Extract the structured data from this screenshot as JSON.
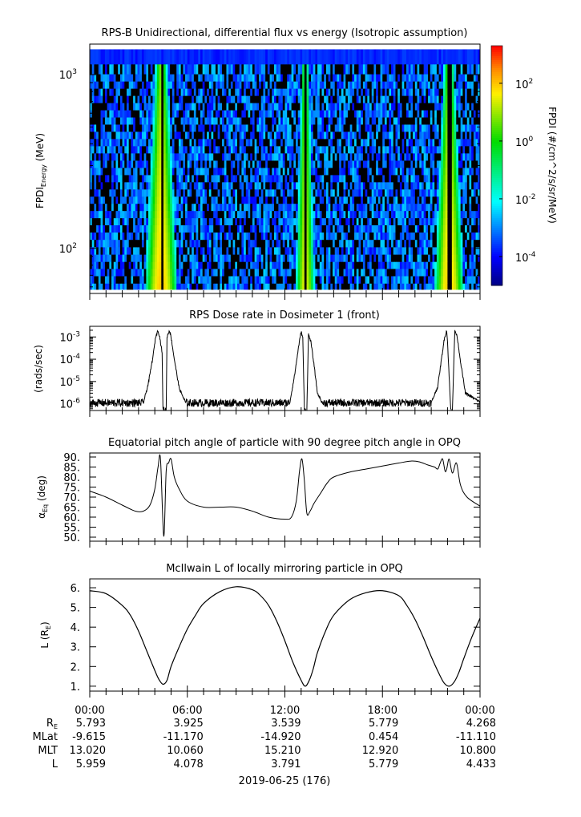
{
  "time_axis": {
    "start": "00:00",
    "end": "24:00",
    "tick_labels": [
      "00:00",
      "06:00",
      "12:00",
      "18:00",
      "00:00"
    ],
    "date_label": "2019-06-25 (176)"
  },
  "ephemeris": {
    "rows": [
      {
        "label": "R",
        "label_sub": "E",
        "values": [
          "5.793",
          "3.925",
          "3.539",
          "5.779",
          "4.268"
        ]
      },
      {
        "label": "MLat",
        "label_sub": "",
        "values": [
          "-9.615",
          "-11.170",
          "-14.920",
          "0.454",
          "-11.110"
        ]
      },
      {
        "label": "MLT",
        "label_sub": "",
        "values": [
          "13.020",
          "10.060",
          "15.210",
          "12.920",
          "10.800"
        ]
      },
      {
        "label": "L",
        "label_sub": "",
        "values": [
          "5.959",
          "4.078",
          "3.791",
          "5.779",
          "4.433"
        ]
      }
    ]
  },
  "chart_data": [
    {
      "type": "heatmap",
      "title": "RPS-B  Unidirectional, differential flux vs energy (Isotropic assumption)",
      "ylabel": {
        "main": "FPDI",
        "sub": "Energy",
        "unit": " (MeV)"
      },
      "yscale": "log",
      "ylim": [
        55,
        1500
      ],
      "yticks": [
        {
          "value": 100,
          "base": "10",
          "exp": "2"
        },
        {
          "value": 1000,
          "base": "10",
          "exp": "3"
        }
      ],
      "energy_channels_mev": [
        60,
        66,
        73,
        80,
        88,
        97,
        107,
        118,
        130,
        143,
        157,
        173,
        190,
        209,
        230,
        253,
        278,
        306,
        337,
        371,
        408,
        449,
        494,
        543,
        597,
        657,
        723,
        795,
        875,
        962,
        1060,
        1250
      ],
      "colorbar": {
        "label": "FPDI (#/cm^2/s/sr/MeV)",
        "scale": "log",
        "range": [
          1e-05,
          2000
        ],
        "ticks": [
          {
            "base": "10",
            "exp": "2",
            "value": 100
          },
          {
            "base": "10",
            "exp": "0",
            "value": 1
          },
          {
            "base": "10",
            "exp": "-2",
            "value": 0.01
          },
          {
            "base": "10",
            "exp": "-4",
            "value": 0.0001
          }
        ]
      },
      "belt_crossings_hours": [
        {
          "center": 4.4,
          "half_width_low_energy": 1.0,
          "half_width_high_energy": 0.4,
          "peak_flux": 100,
          "gap_hours": [
            4.35,
            4.55
          ]
        },
        {
          "center": 13.25,
          "half_width_low_energy": 0.6,
          "half_width_high_energy": 0.25,
          "peak_flux": 30,
          "gap_hours": [
            13.15,
            13.35
          ]
        },
        {
          "center": 22.1,
          "half_width_low_energy": 0.9,
          "half_width_high_energy": 0.35,
          "peak_flux": 100,
          "gap_hours": [
            22.0,
            22.2
          ]
        }
      ],
      "background_flux": 0.0003,
      "top_channel_flux": 0.0002
    },
    {
      "type": "line",
      "title": "RPS  Dose rate in Dosimeter 1 (front)",
      "ylabel": "(rads/sec)",
      "yscale": "log",
      "ylim": [
        5e-07,
        0.003
      ],
      "yticks": [
        {
          "value": 1e-06,
          "base": "10",
          "exp": "-6"
        },
        {
          "value": 1e-05,
          "base": "10",
          "exp": "-5"
        },
        {
          "value": 0.0001,
          "base": "10",
          "exp": "-4"
        },
        {
          "value": 0.001,
          "base": "10",
          "exp": "-3"
        }
      ],
      "series": [
        {
          "x_hours": [
            0,
            3.3,
            3.6,
            3.9,
            4.05,
            4.2,
            4.3,
            4.45,
            4.5,
            4.7,
            4.75,
            4.9,
            5.0,
            5.2,
            5.5,
            5.9,
            12.3,
            12.6,
            12.85,
            13.0,
            13.1,
            13.2,
            13.35,
            13.45,
            13.6,
            13.8,
            14.0,
            14.3,
            21.0,
            21.4,
            21.6,
            21.8,
            21.95,
            22.0,
            22.2,
            22.3,
            22.45,
            22.6,
            22.8,
            23.1,
            24
          ],
          "y_rads_per_sec": [
            1.1e-06,
            1.1e-06,
            8e-06,
            0.00015,
            0.001,
            0.002,
            0.001,
            0.0002,
            5e-07,
            5e-07,
            0.001,
            0.002,
            0.001,
            0.0001,
            5e-06,
            1.1e-06,
            1.1e-06,
            2e-05,
            0.0004,
            0.0018,
            0.0009,
            5e-07,
            5e-07,
            0.0013,
            0.0006,
            5e-05,
            3e-06,
            1.1e-06,
            1.1e-06,
            6e-06,
            7e-05,
            0.0008,
            0.002,
            0.0006,
            5e-07,
            5e-07,
            0.002,
            0.001,
            8e-05,
            3e-06,
            1.2e-06
          ],
          "noise_note_floor": 1.1e-06
        }
      ]
    },
    {
      "type": "line",
      "title": "Equatorial pitch angle of particle with 90 degree pitch angle in OPQ",
      "ylabel": {
        "main": "α",
        "sub": "Eq",
        "unit": " (deg)"
      },
      "ylim": [
        48,
        92
      ],
      "yticks": [
        50,
        55,
        60,
        65,
        70,
        75,
        80,
        85,
        90
      ],
      "series": [
        {
          "x_hours": [
            0,
            1,
            2,
            2.8,
            3.3,
            3.7,
            4.0,
            4.2,
            4.35,
            4.55,
            4.7,
            4.85,
            5.0,
            5.2,
            5.5,
            6,
            7,
            8,
            9,
            10,
            11,
            12,
            12.4,
            12.7,
            12.9,
            13.05,
            13.2,
            13.35,
            13.55,
            13.8,
            14.2,
            14.6,
            15,
            16,
            17,
            18,
            19,
            19.8,
            20.3,
            20.8,
            21.2,
            21.4,
            21.55,
            21.7,
            21.85,
            21.95,
            22.1,
            22.3,
            22.55,
            22.8,
            23.2,
            24
          ],
          "y_deg": [
            73,
            70,
            66,
            63,
            63,
            66,
            74,
            85,
            89,
            50.5,
            83,
            87,
            89,
            80,
            74,
            68,
            65,
            65,
            65,
            63,
            60,
            59,
            60,
            68,
            83,
            89,
            78,
            62,
            63,
            67,
            72,
            77,
            80,
            82.5,
            84,
            85.5,
            87,
            88,
            87.5,
            86,
            85,
            84,
            87,
            89,
            83,
            84,
            89,
            82,
            87,
            76,
            70,
            65.5
          ]
        }
      ]
    },
    {
      "type": "line",
      "title": "McIlwain L of locally mirroring particle in OPQ",
      "ylabel": {
        "main": "L (R",
        "sub": "E",
        "unit": ")"
      },
      "ylim": [
        0.75,
        6.45
      ],
      "yticks": [
        1,
        2,
        3,
        4,
        5,
        6
      ],
      "series": [
        {
          "x_hours": [
            0,
            1,
            2,
            2.5,
            3,
            3.5,
            4,
            4.25,
            4.5,
            4.75,
            5,
            5.5,
            6,
            6.5,
            7,
            8,
            9,
            10,
            10.5,
            11,
            11.5,
            12,
            12.5,
            13,
            13.25,
            13.5,
            13.75,
            14,
            14.5,
            15,
            16,
            17,
            18,
            19,
            19.5,
            20,
            20.5,
            21,
            21.5,
            21.8,
            22.1,
            22.4,
            22.7,
            23,
            23.5,
            24
          ],
          "y_L": [
            5.85,
            5.7,
            5.1,
            4.6,
            3.8,
            2.8,
            1.8,
            1.35,
            1.1,
            1.3,
            2.0,
            3.0,
            3.9,
            4.6,
            5.2,
            5.8,
            6.05,
            5.9,
            5.6,
            5.1,
            4.3,
            3.3,
            2.2,
            1.3,
            1.0,
            1.3,
            1.9,
            2.7,
            3.8,
            4.6,
            5.4,
            5.75,
            5.85,
            5.6,
            5.1,
            4.4,
            3.5,
            2.5,
            1.6,
            1.15,
            1.0,
            1.2,
            1.7,
            2.4,
            3.5,
            4.45
          ]
        }
      ]
    }
  ]
}
